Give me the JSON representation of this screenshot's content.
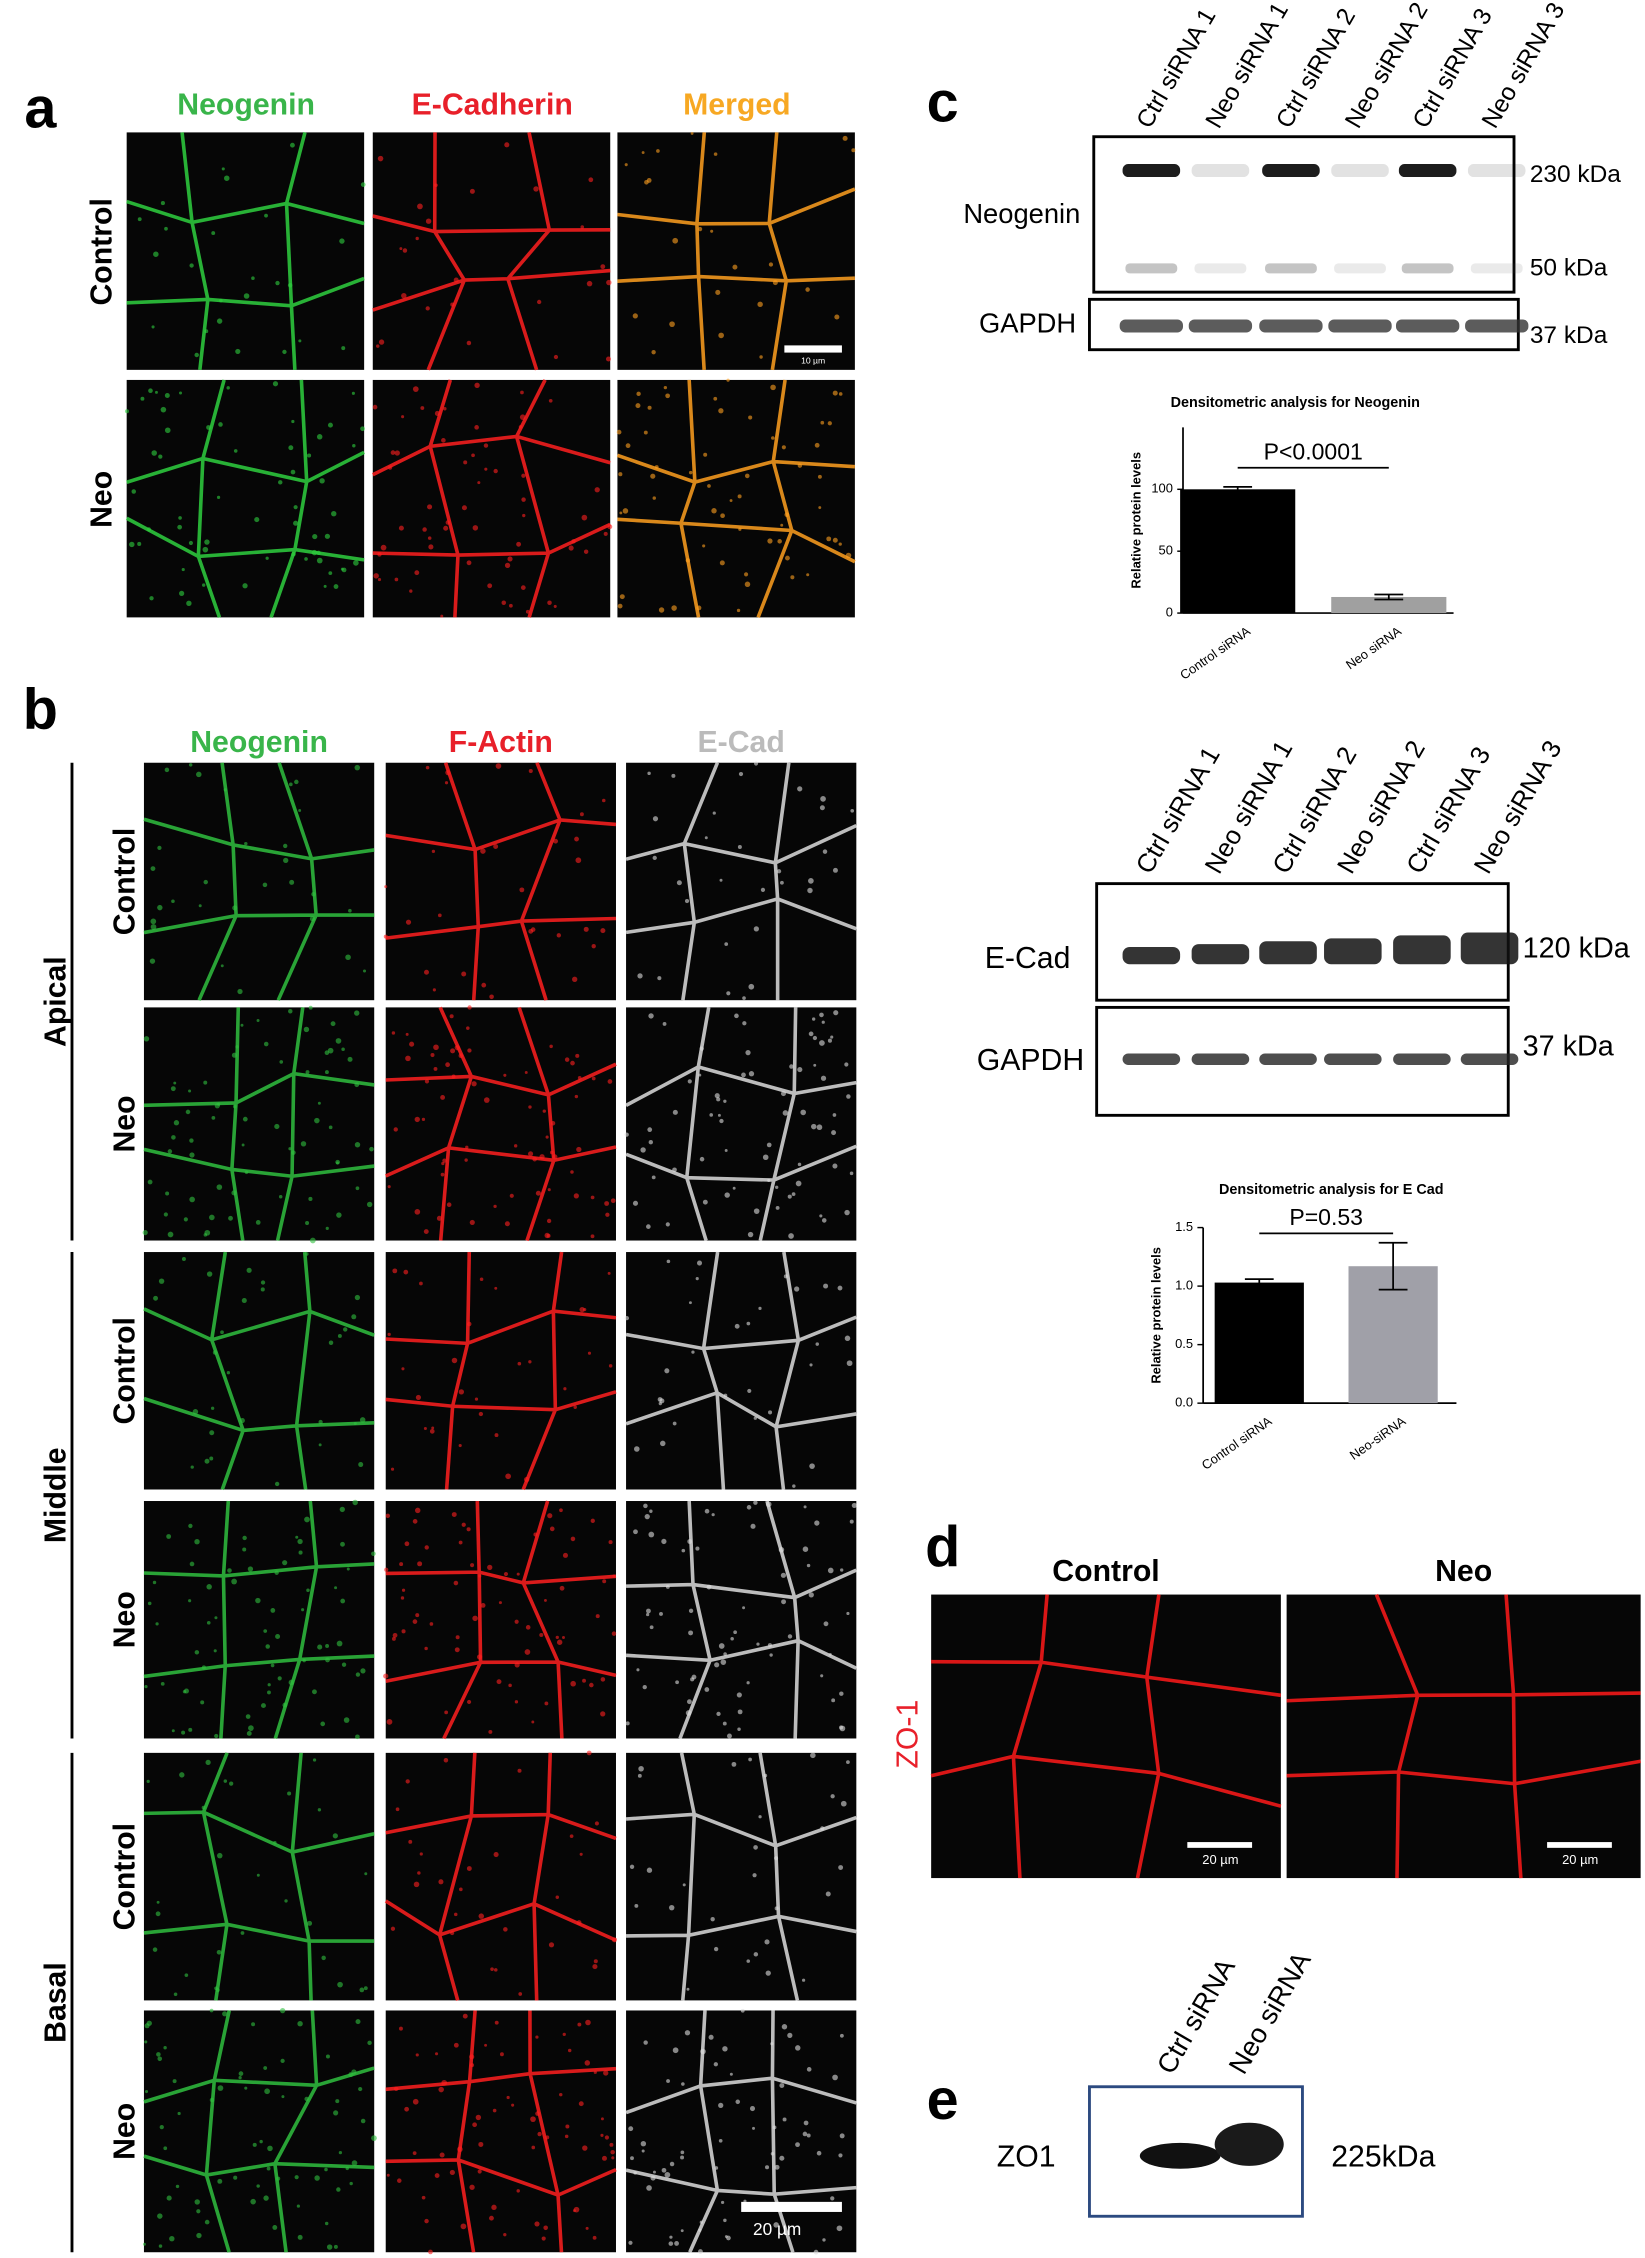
{
  "panel_a": {
    "label": "a",
    "columns": [
      "Neogenin",
      "E-Cadherin",
      "Merged"
    ],
    "rows": [
      "Control",
      "Neo"
    ],
    "scale_bar": "10 µm"
  },
  "panel_b": {
    "label": "b",
    "columns": [
      "Neogenin",
      "F-Actin",
      "E-Cad"
    ],
    "groups": [
      {
        "name": "Apical",
        "rows": [
          "Control",
          "Neo"
        ]
      },
      {
        "name": "Middle",
        "rows": [
          "Control",
          "Neo"
        ]
      },
      {
        "name": "Basal",
        "rows": [
          "Control",
          "Neo"
        ]
      }
    ],
    "scale_bar": "20 µm"
  },
  "panel_c": {
    "label": "c",
    "blot1": {
      "lanes": [
        "Ctrl siRNA 1",
        "Neo siRNA 1",
        "Ctrl siRNA 2",
        "Neo siRNA 2",
        "Ctrl siRNA 3",
        "Neo siRNA 3"
      ],
      "bands": [
        "Neogenin",
        "GAPDH"
      ],
      "markers": [
        "230 kDa",
        "50 kDa",
        "37 kDa"
      ]
    },
    "chart1": {
      "type": "bar",
      "title": "Densitometric analysis for Neogenin",
      "ylabel": "Relative protein levels",
      "categories": [
        "Control siRNA",
        "Neo siRNA"
      ],
      "values": [
        100,
        13
      ],
      "errors": [
        2,
        2
      ],
      "colors": [
        "#000000",
        "#a0a0a0"
      ],
      "ylim": [
        0,
        150
      ],
      "yticks": [
        0,
        50,
        100
      ],
      "annotation": "P<0.0001"
    },
    "blot2": {
      "lanes": [
        "Ctrl siRNA 1",
        "Neo siRNA 1",
        "Ctrl siRNA 2",
        "Neo siRNA 2",
        "Ctrl siRNA 3",
        "Neo siRNA 3"
      ],
      "bands": [
        "E-Cad",
        "GAPDH"
      ],
      "markers": [
        "120 kDa",
        "37 kDa"
      ]
    },
    "chart2": {
      "type": "bar",
      "title": "Densitometric analysis for E Cad",
      "ylabel": "Relative protein levels",
      "categories": [
        "Control siRNA",
        "Neo-siRNA"
      ],
      "values": [
        1.03,
        1.17
      ],
      "errors": [
        0.03,
        0.2
      ],
      "colors": [
        "#000000",
        "#a0a0a8"
      ],
      "ylim": [
        0,
        1.5
      ],
      "yticks": [
        {
          "value": 0,
          "label": "0.0"
        },
        {
          "value": 0.5,
          "label": "0.5"
        },
        {
          "value": 1,
          "label": "1.0"
        },
        {
          "value": 1.5,
          "label": "1.5"
        }
      ],
      "annotation": "P=0.53"
    }
  },
  "panel_d": {
    "label": "d",
    "columns": [
      "Control",
      "Neo"
    ],
    "stain": "ZO-1",
    "scale_bars": [
      "20 µm",
      "20 µm"
    ]
  },
  "panel_e": {
    "label": "e",
    "lanes": [
      "Ctrl siRNA",
      "Neo siRNA"
    ],
    "band": "ZO1",
    "marker": "225kDa"
  }
}
